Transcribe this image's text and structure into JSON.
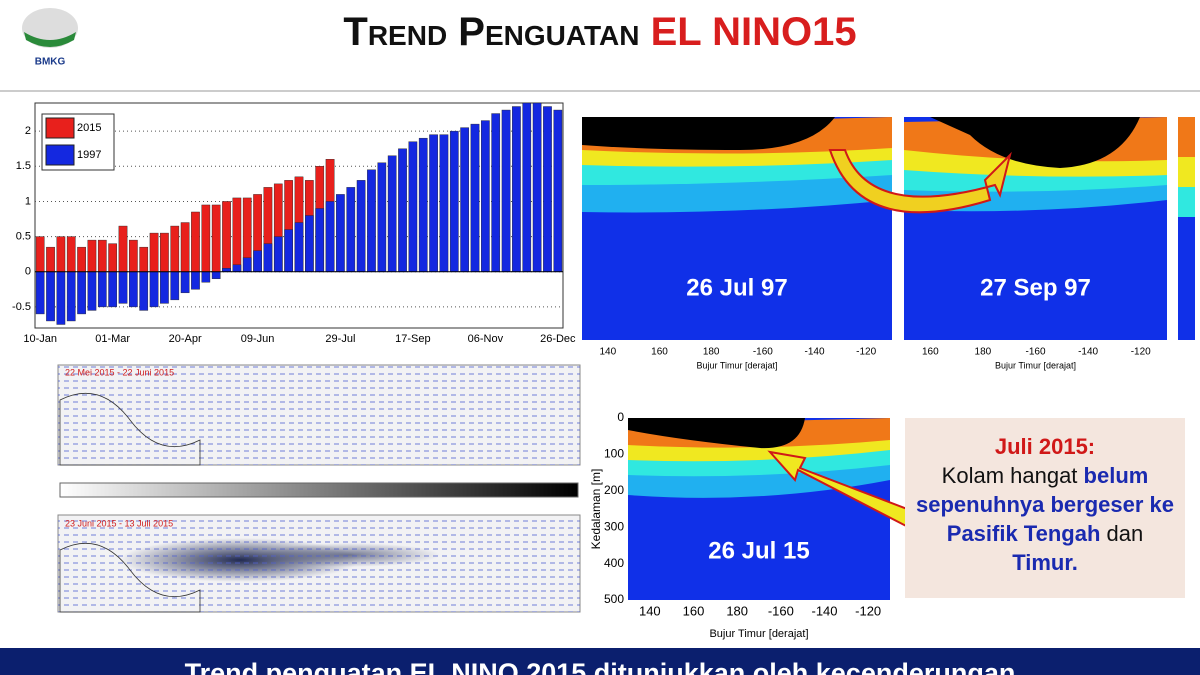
{
  "header": {
    "logo": "BMKG",
    "title_main": "Trend Penguatan",
    "title_accent": "EL NINO15"
  },
  "chart_data": {
    "type": "bar",
    "categories": [
      "10-Jan",
      null,
      null,
      null,
      null,
      null,
      null,
      "01-Mar",
      null,
      null,
      null,
      null,
      null,
      null,
      "20-Apr",
      null,
      null,
      null,
      null,
      null,
      null,
      "09-Jun",
      null,
      null,
      null,
      null,
      null,
      null,
      null,
      "29-Jul",
      null,
      null,
      null,
      null,
      null,
      null,
      "17-Sep",
      null,
      null,
      null,
      null,
      null,
      null,
      "06-Nov",
      null,
      null,
      null,
      null,
      null,
      null,
      "26-Dec"
    ],
    "series": [
      {
        "name": "2015",
        "color": "#e8201c",
        "values": [
          0.5,
          0.35,
          0.5,
          0.5,
          0.35,
          0.45,
          0.45,
          0.4,
          0.65,
          0.45,
          0.35,
          0.55,
          0.55,
          0.65,
          0.7,
          0.85,
          0.95,
          0.95,
          1.0,
          1.05,
          1.05,
          1.1,
          1.2,
          1.25,
          1.3,
          1.35,
          1.3,
          1.5,
          1.6,
          null,
          null,
          null,
          null,
          null,
          null,
          null,
          null,
          null,
          null,
          null,
          null,
          null,
          null,
          null,
          null,
          null,
          null,
          null,
          null,
          null,
          null
        ]
      },
      {
        "name": "1997",
        "color": "#1428e0",
        "values": [
          -0.6,
          -0.7,
          -0.75,
          -0.7,
          -0.6,
          -0.55,
          -0.5,
          -0.5,
          -0.45,
          -0.5,
          -0.55,
          -0.5,
          -0.45,
          -0.4,
          -0.3,
          -0.25,
          -0.15,
          -0.1,
          0.05,
          0.1,
          0.2,
          0.3,
          0.4,
          0.5,
          0.6,
          0.7,
          0.8,
          0.9,
          1.0,
          1.1,
          1.2,
          1.3,
          1.45,
          1.55,
          1.65,
          1.75,
          1.85,
          1.9,
          1.95,
          1.95,
          2.0,
          2.05,
          2.1,
          2.15,
          2.25,
          2.3,
          2.35,
          2.4,
          2.4,
          2.35,
          2.3
        ]
      }
    ],
    "ylim": [
      -0.8,
      2.4
    ],
    "yticks": [
      -0.5,
      0,
      0.5,
      1,
      1.5,
      2
    ],
    "grid": true,
    "legend": "top-left"
  },
  "panels": [
    {
      "label": "26 Jul 97",
      "xticks": [
        140,
        160,
        180,
        -160,
        -140,
        -120
      ],
      "xlabel": "Bujur Timur [derajat]"
    },
    {
      "label": "27 Sep 97",
      "xticks": [
        160,
        180,
        -160,
        -140,
        -120
      ],
      "xlabel": "Bujur Timur [derajat]"
    },
    {
      "label": "26 Jul 15",
      "xticks": [
        140,
        160,
        180,
        -160,
        -140,
        -120
      ],
      "xlabel": "Bujur Timur [derajat]",
      "yticks": [
        0,
        100,
        200,
        300,
        400,
        500
      ],
      "ylabel": "Kedalaman [m]"
    }
  ],
  "maps": [
    {
      "label": "22 Mei 2015 - 22 Juni 2015"
    },
    {
      "label": "23 Juni 2015 - 13 Juli 2015"
    }
  ],
  "note": {
    "heading": "Juli 2015:",
    "body": [
      "Kolam hangat ",
      "belum sepenuhnya bergeser ke Pasifik Tengah",
      " dan ",
      "Timur."
    ]
  },
  "footer": {
    "text": "Trend penguatan EL NINO 2015 ditunjukkan oleh kecenderungan"
  }
}
